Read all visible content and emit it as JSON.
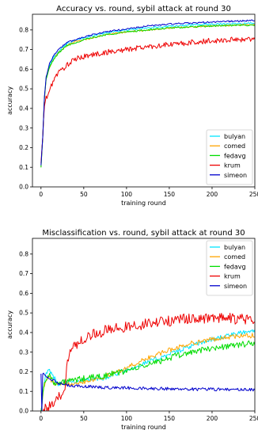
{
  "chart_data": [
    {
      "type": "line",
      "title": "Accuracy vs. round, sybil attack at round 30",
      "xlabel": "training round",
      "ylabel": "accuracy",
      "xlim": [
        -10,
        250
      ],
      "ylim": [
        0.0,
        0.88
      ],
      "x_ticks": [
        0,
        50,
        100,
        150,
        200,
        250
      ],
      "y_ticks": [
        0.0,
        0.1,
        0.2,
        0.3,
        0.4,
        0.5,
        0.6,
        0.7,
        0.8
      ],
      "grid": false,
      "legend": "bottom-right",
      "series": [
        {
          "name": "bulyan",
          "color": "#00e5ff",
          "noise": 0.002,
          "points": [
            [
              0,
              0.1
            ],
            [
              2,
              0.25
            ],
            [
              4,
              0.45
            ],
            [
              6,
              0.55
            ],
            [
              10,
              0.62
            ],
            [
              15,
              0.66
            ],
            [
              20,
              0.69
            ],
            [
              30,
              0.73
            ],
            [
              40,
              0.745
            ],
            [
              50,
              0.76
            ],
            [
              75,
              0.785
            ],
            [
              100,
              0.8
            ],
            [
              125,
              0.81
            ],
            [
              150,
              0.82
            ],
            [
              175,
              0.825
            ],
            [
              200,
              0.83
            ],
            [
              225,
              0.833
            ],
            [
              250,
              0.835
            ]
          ]
        },
        {
          "name": "comed",
          "color": "#ffa500",
          "noise": 0.002,
          "points": [
            [
              0,
              0.1
            ],
            [
              2,
              0.25
            ],
            [
              4,
              0.45
            ],
            [
              6,
              0.55
            ],
            [
              10,
              0.61
            ],
            [
              15,
              0.655
            ],
            [
              20,
              0.685
            ],
            [
              30,
              0.72
            ],
            [
              40,
              0.74
            ],
            [
              50,
              0.75
            ],
            [
              75,
              0.775
            ],
            [
              100,
              0.79
            ],
            [
              125,
              0.8
            ],
            [
              150,
              0.81
            ],
            [
              175,
              0.815
            ],
            [
              200,
              0.82
            ],
            [
              225,
              0.825
            ],
            [
              250,
              0.828
            ]
          ]
        },
        {
          "name": "fedavg",
          "color": "#00dd00",
          "noise": 0.002,
          "points": [
            [
              0,
              0.1
            ],
            [
              2,
              0.25
            ],
            [
              4,
              0.45
            ],
            [
              6,
              0.55
            ],
            [
              10,
              0.61
            ],
            [
              15,
              0.65
            ],
            [
              20,
              0.68
            ],
            [
              30,
              0.72
            ],
            [
              40,
              0.735
            ],
            [
              50,
              0.75
            ],
            [
              75,
              0.775
            ],
            [
              100,
              0.79
            ],
            [
              125,
              0.8
            ],
            [
              150,
              0.81
            ],
            [
              175,
              0.815
            ],
            [
              200,
              0.82
            ],
            [
              225,
              0.823
            ],
            [
              250,
              0.825
            ]
          ]
        },
        {
          "name": "krum",
          "color": "#ee0000",
          "noise": 0.007,
          "points": [
            [
              0,
              0.12
            ],
            [
              2,
              0.25
            ],
            [
              4,
              0.42
            ],
            [
              6,
              0.45
            ],
            [
              10,
              0.49
            ],
            [
              15,
              0.55
            ],
            [
              20,
              0.58
            ],
            [
              30,
              0.62
            ],
            [
              40,
              0.65
            ],
            [
              50,
              0.665
            ],
            [
              75,
              0.685
            ],
            [
              100,
              0.7
            ],
            [
              125,
              0.715
            ],
            [
              150,
              0.725
            ],
            [
              175,
              0.735
            ],
            [
              200,
              0.745
            ],
            [
              225,
              0.75
            ],
            [
              250,
              0.755
            ]
          ]
        },
        {
          "name": "simeon",
          "color": "#0000cc",
          "noise": 0.002,
          "points": [
            [
              0,
              0.11
            ],
            [
              2,
              0.25
            ],
            [
              4,
              0.46
            ],
            [
              6,
              0.56
            ],
            [
              10,
              0.63
            ],
            [
              15,
              0.67
            ],
            [
              20,
              0.7
            ],
            [
              30,
              0.735
            ],
            [
              40,
              0.75
            ],
            [
              50,
              0.765
            ],
            [
              75,
              0.79
            ],
            [
              100,
              0.805
            ],
            [
              125,
              0.82
            ],
            [
              150,
              0.83
            ],
            [
              175,
              0.835
            ],
            [
              200,
              0.84
            ],
            [
              225,
              0.845
            ],
            [
              250,
              0.848
            ]
          ]
        }
      ]
    },
    {
      "type": "line",
      "title": "Misclassification vs. round, sybil attack at round 30",
      "xlabel": "training round",
      "ylabel": "accuracy",
      "xlim": [
        -10,
        250
      ],
      "ylim": [
        0.0,
        0.88
      ],
      "x_ticks": [
        0,
        50,
        100,
        150,
        200,
        250
      ],
      "y_ticks": [
        0.0,
        0.1,
        0.2,
        0.3,
        0.4,
        0.5,
        0.6,
        0.7,
        0.8
      ],
      "grid": false,
      "legend": "top-right",
      "series": [
        {
          "name": "bulyan",
          "color": "#00e5ff",
          "noise": 0.006,
          "points": [
            [
              0,
              0.0
            ],
            [
              3,
              0.12
            ],
            [
              6,
              0.19
            ],
            [
              10,
              0.21
            ],
            [
              15,
              0.17
            ],
            [
              20,
              0.14
            ],
            [
              30,
              0.15
            ],
            [
              50,
              0.155
            ],
            [
              75,
              0.17
            ],
            [
              100,
              0.21
            ],
            [
              125,
              0.25
            ],
            [
              150,
              0.29
            ],
            [
              175,
              0.33
            ],
            [
              200,
              0.365
            ],
            [
              225,
              0.39
            ],
            [
              250,
              0.41
            ]
          ]
        },
        {
          "name": "comed",
          "color": "#ffa500",
          "noise": 0.006,
          "points": [
            [
              0,
              0.0
            ],
            [
              3,
              0.11
            ],
            [
              6,
              0.16
            ],
            [
              10,
              0.17
            ],
            [
              15,
              0.14
            ],
            [
              20,
              0.13
            ],
            [
              30,
              0.14
            ],
            [
              50,
              0.15
            ],
            [
              75,
              0.175
            ],
            [
              100,
              0.22
            ],
            [
              125,
              0.27
            ],
            [
              150,
              0.31
            ],
            [
              175,
              0.345
            ],
            [
              200,
              0.365
            ],
            [
              225,
              0.38
            ],
            [
              250,
              0.385
            ]
          ]
        },
        {
          "name": "fedavg",
          "color": "#00dd00",
          "noise": 0.008,
          "points": [
            [
              0,
              0.0
            ],
            [
              3,
              0.12
            ],
            [
              6,
              0.17
            ],
            [
              10,
              0.18
            ],
            [
              15,
              0.15
            ],
            [
              20,
              0.14
            ],
            [
              30,
              0.15
            ],
            [
              50,
              0.165
            ],
            [
              75,
              0.18
            ],
            [
              100,
              0.205
            ],
            [
              125,
              0.235
            ],
            [
              150,
              0.27
            ],
            [
              175,
              0.3
            ],
            [
              200,
              0.32
            ],
            [
              225,
              0.335
            ],
            [
              250,
              0.345
            ]
          ]
        },
        {
          "name": "krum",
          "color": "#ee0000",
          "noise": 0.014,
          "points": [
            [
              0,
              0.0
            ],
            [
              5,
              0.01
            ],
            [
              10,
              0.02
            ],
            [
              15,
              0.03
            ],
            [
              20,
              0.06
            ],
            [
              25,
              0.1
            ],
            [
              28,
              0.12
            ],
            [
              30,
              0.25
            ],
            [
              35,
              0.3
            ],
            [
              40,
              0.34
            ],
            [
              50,
              0.37
            ],
            [
              60,
              0.39
            ],
            [
              75,
              0.41
            ],
            [
              100,
              0.43
            ],
            [
              125,
              0.445
            ],
            [
              150,
              0.46
            ],
            [
              175,
              0.47
            ],
            [
              200,
              0.475
            ],
            [
              225,
              0.47
            ],
            [
              250,
              0.465
            ]
          ]
        },
        {
          "name": "simeon",
          "color": "#0000cc",
          "noise": 0.004,
          "points": [
            [
              0,
              0.19
            ],
            [
              1,
              0.0
            ],
            [
              2,
              0.19
            ],
            [
              5,
              0.18
            ],
            [
              10,
              0.17
            ],
            [
              20,
              0.14
            ],
            [
              30,
              0.13
            ],
            [
              50,
              0.125
            ],
            [
              75,
              0.12
            ],
            [
              100,
              0.118
            ],
            [
              125,
              0.115
            ],
            [
              150,
              0.113
            ],
            [
              175,
              0.112
            ],
            [
              200,
              0.11
            ],
            [
              225,
              0.11
            ],
            [
              250,
              0.108
            ]
          ]
        }
      ]
    }
  ]
}
